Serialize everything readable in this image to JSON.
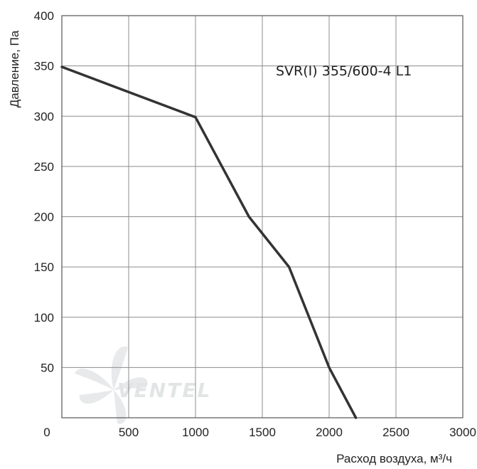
{
  "chart_data": {
    "type": "line",
    "title": "SVR(I) 355/600-4 L1",
    "xlabel": "Расход воздуха, м³/ч",
    "ylabel": "Давление, Па",
    "xlim": [
      0,
      3000
    ],
    "ylim": [
      0,
      400
    ],
    "x_ticks": [
      "0",
      "500",
      "1000",
      "1500",
      "2000",
      "2500",
      "3000"
    ],
    "y_ticks": [
      "50",
      "100",
      "150",
      "200",
      "250",
      "300",
      "350",
      "400"
    ],
    "grid": true,
    "series": [
      {
        "color": "#333333",
        "points": [
          {
            "x": 0,
            "y": 349
          },
          {
            "x": 1000,
            "y": 299
          },
          {
            "x": 1400,
            "y": 200
          },
          {
            "x": 1700,
            "y": 150
          },
          {
            "x": 2000,
            "y": 50
          },
          {
            "x": 2200,
            "y": 0
          }
        ]
      }
    ]
  },
  "watermark": {
    "brand": "VENTEL"
  }
}
